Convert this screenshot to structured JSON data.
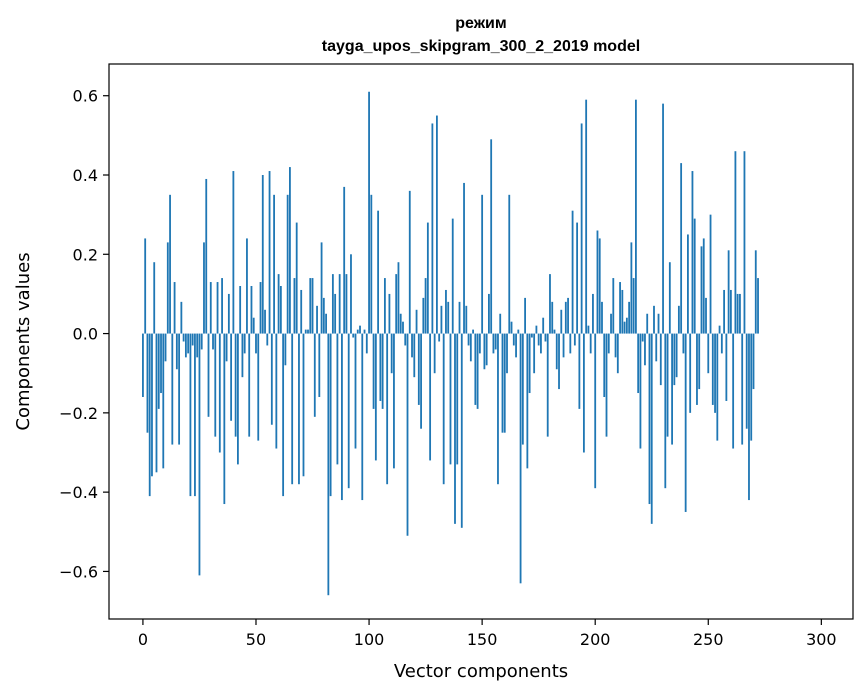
{
  "chart_data": {
    "type": "bar",
    "title": "режим",
    "subtitle": "tayga_upos_skipgram_300_2_2019 model",
    "xlabel": "Vector components",
    "ylabel": "Components values",
    "xlim": [
      -15,
      314
    ],
    "ylim": [
      -0.72,
      0.68
    ],
    "xticks": [
      0,
      50,
      100,
      150,
      200,
      250,
      300
    ],
    "xtick_labels": [
      "0",
      "50",
      "100",
      "150",
      "200",
      "250",
      "300"
    ],
    "yticks": [
      -0.6,
      -0.4,
      -0.2,
      0.0,
      0.2,
      0.4,
      0.6
    ],
    "ytick_labels": [
      "−0.6",
      "−0.4",
      "−0.2",
      "0.0",
      "0.2",
      "0.4",
      "0.6"
    ],
    "bar_color": "#1f77b4",
    "grid": false,
    "legend": "none",
    "series": [
      {
        "x_start": 0,
        "values": [
          -0.16,
          0.24,
          -0.25,
          -0.41,
          -0.36,
          0.18,
          -0.35,
          -0.19,
          -0.15,
          -0.34,
          -0.07,
          0.23,
          0.35,
          -0.28,
          0.13,
          -0.09,
          -0.28,
          0.08,
          -0.02,
          -0.06,
          -0.05,
          -0.41,
          -0.03,
          -0.41,
          -0.06,
          -0.61,
          -0.04,
          0.23,
          0.39,
          -0.21,
          0.13,
          -0.04,
          -0.26,
          0.13,
          -0.3,
          0.14,
          -0.43,
          -0.07,
          0.1,
          -0.22,
          0.41,
          -0.26,
          -0.33,
          0.12,
          -0.11,
          -0.05,
          0.24,
          -0.26,
          0.12,
          0.04,
          -0.05,
          -0.27,
          0.13,
          0.4,
          0.06,
          -0.03,
          0.41,
          -0.23,
          0.35,
          -0.29,
          0.15,
          0.12,
          -0.41,
          -0.08,
          0.35,
          0.42,
          -0.38,
          0.14,
          0.28,
          -0.38,
          0.11,
          -0.36,
          0.01,
          0.01,
          0.14,
          0.14,
          -0.21,
          0.07,
          -0.16,
          0.23,
          0.09,
          0.05,
          -0.66,
          -0.41,
          0.15,
          0.1,
          -0.33,
          0.15,
          -0.42,
          0.37,
          0.15,
          -0.39,
          0.2,
          -0.01,
          -0.29,
          0.01,
          0.02,
          -0.42,
          0.01,
          -0.05,
          0.61,
          0.35,
          -0.19,
          -0.32,
          0.31,
          -0.17,
          -0.19,
          0.14,
          -0.38,
          0.1,
          -0.1,
          -0.34,
          0.15,
          0.18,
          0.05,
          0.03,
          -0.03,
          -0.51,
          0.36,
          -0.06,
          -0.11,
          0.06,
          -0.18,
          -0.24,
          0.09,
          0.14,
          0.28,
          -0.32,
          0.53,
          -0.1,
          0.55,
          -0.02,
          0.07,
          -0.38,
          0.11,
          0.08,
          -0.33,
          0.29,
          -0.48,
          -0.33,
          0.08,
          -0.49,
          0.38,
          0.07,
          -0.03,
          -0.07,
          0.01,
          -0.18,
          -0.19,
          -0.05,
          0.35,
          -0.09,
          -0.08,
          0.1,
          0.49,
          -0.05,
          -0.04,
          -0.38,
          0.05,
          -0.25,
          -0.25,
          -0.1,
          0.35,
          0.03,
          -0.03,
          -0.06,
          0.01,
          -0.63,
          -0.28,
          0.09,
          -0.34,
          -0.15,
          -0.01,
          -0.1,
          0.02,
          -0.03,
          -0.05,
          0.04,
          -0.02,
          -0.26,
          0.15,
          0.08,
          0.01,
          -0.09,
          -0.14,
          0.06,
          -0.06,
          0.08,
          0.09,
          -0.05,
          0.31,
          -0.03,
          0.28,
          -0.19,
          0.53,
          -0.3,
          0.59,
          0.02,
          -0.05,
          0.1,
          -0.39,
          0.26,
          0.24,
          0.08,
          -0.16,
          -0.26,
          -0.05,
          0.05,
          0.14,
          -0.06,
          -0.1,
          0.13,
          0.11,
          0.03,
          0.04,
          0.08,
          0.23,
          0.14,
          0.59,
          -0.15,
          -0.29,
          -0.02,
          -0.08,
          0.05,
          -0.43,
          -0.48,
          0.07,
          -0.07,
          0.05,
          -0.13,
          0.58,
          -0.39,
          -0.26,
          0.18,
          -0.28,
          -0.13,
          -0.11,
          0.07,
          0.43,
          -0.05,
          -0.45,
          0.25,
          -0.2,
          0.41,
          0.29,
          -0.18,
          -0.14,
          0.22,
          0.24,
          0.09,
          -0.1,
          0.3,
          -0.18,
          -0.2,
          -0.27,
          0.02,
          -0.05,
          0.11,
          -0.17,
          0.21,
          0.11,
          -0.29,
          0.46,
          0.1,
          0.1,
          -0.28,
          0.46,
          -0.24,
          -0.42,
          -0.27,
          -0.14,
          0.21,
          0.14
        ]
      }
    ]
  }
}
